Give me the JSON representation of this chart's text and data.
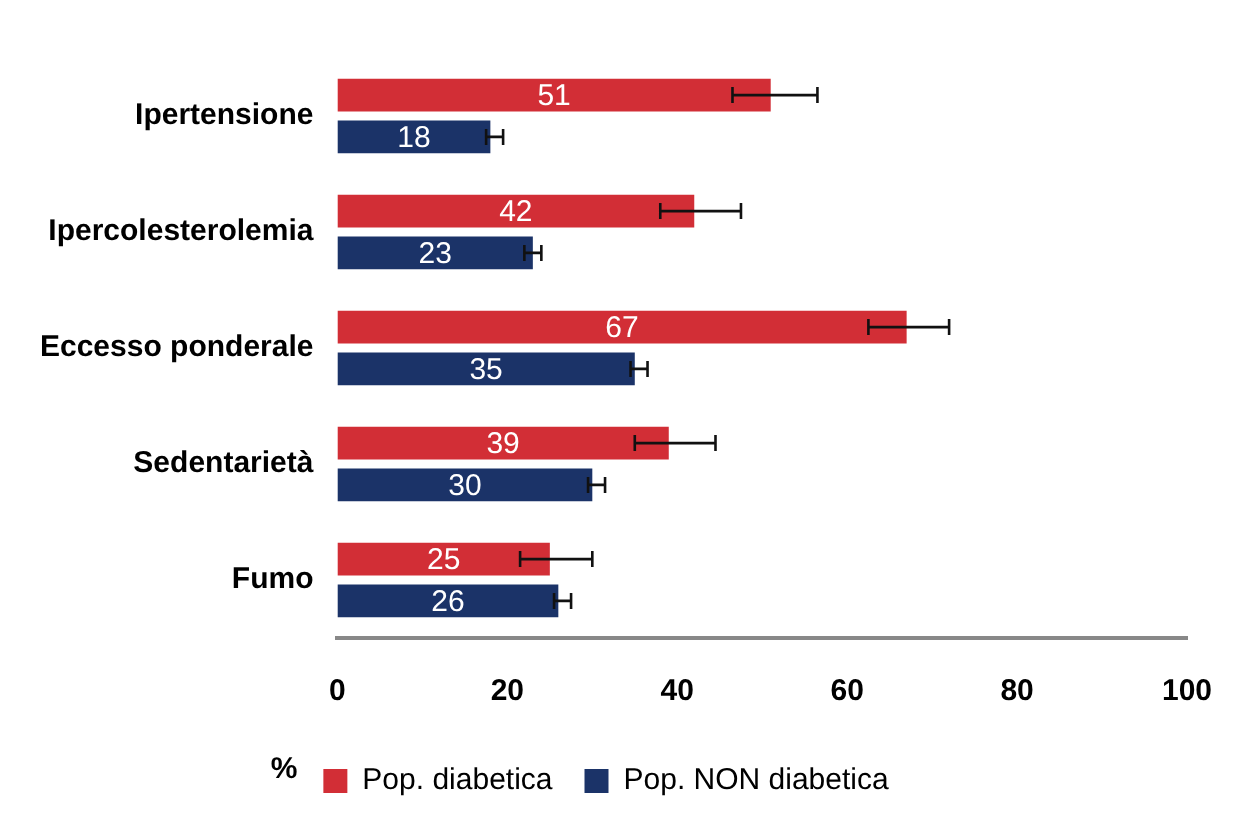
{
  "chart_data": {
    "type": "bar",
    "orientation": "horizontal",
    "categories": [
      "Ipertensione",
      "Ipercolesterolemia",
      "Eccesso ponderale",
      "Sedentarietà",
      "Fumo"
    ],
    "series": [
      {
        "name": "Pop. diabetica",
        "color": "#d22e36",
        "values": [
          51,
          42,
          67,
          39,
          25
        ],
        "errors": [
          [
            46.5,
            56.5
          ],
          [
            38,
            47.5
          ],
          [
            62.5,
            72
          ],
          [
            35,
            44.5
          ],
          [
            21.5,
            30
          ]
        ]
      },
      {
        "name": "Pop. NON diabetica",
        "color": "#1b3368",
        "values": [
          18,
          23,
          35,
          30,
          26
        ],
        "errors": [
          [
            17.5,
            19.5
          ],
          [
            22,
            24
          ],
          [
            34.5,
            36.5
          ],
          [
            29.5,
            31.5
          ],
          [
            25.5,
            27.5
          ]
        ]
      }
    ],
    "xlabel": "%",
    "xlim": [
      0,
      100
    ],
    "xticks": [
      0,
      20,
      40,
      60,
      80,
      100
    ],
    "grid": false,
    "legend": "bottom",
    "data_labels": true
  }
}
